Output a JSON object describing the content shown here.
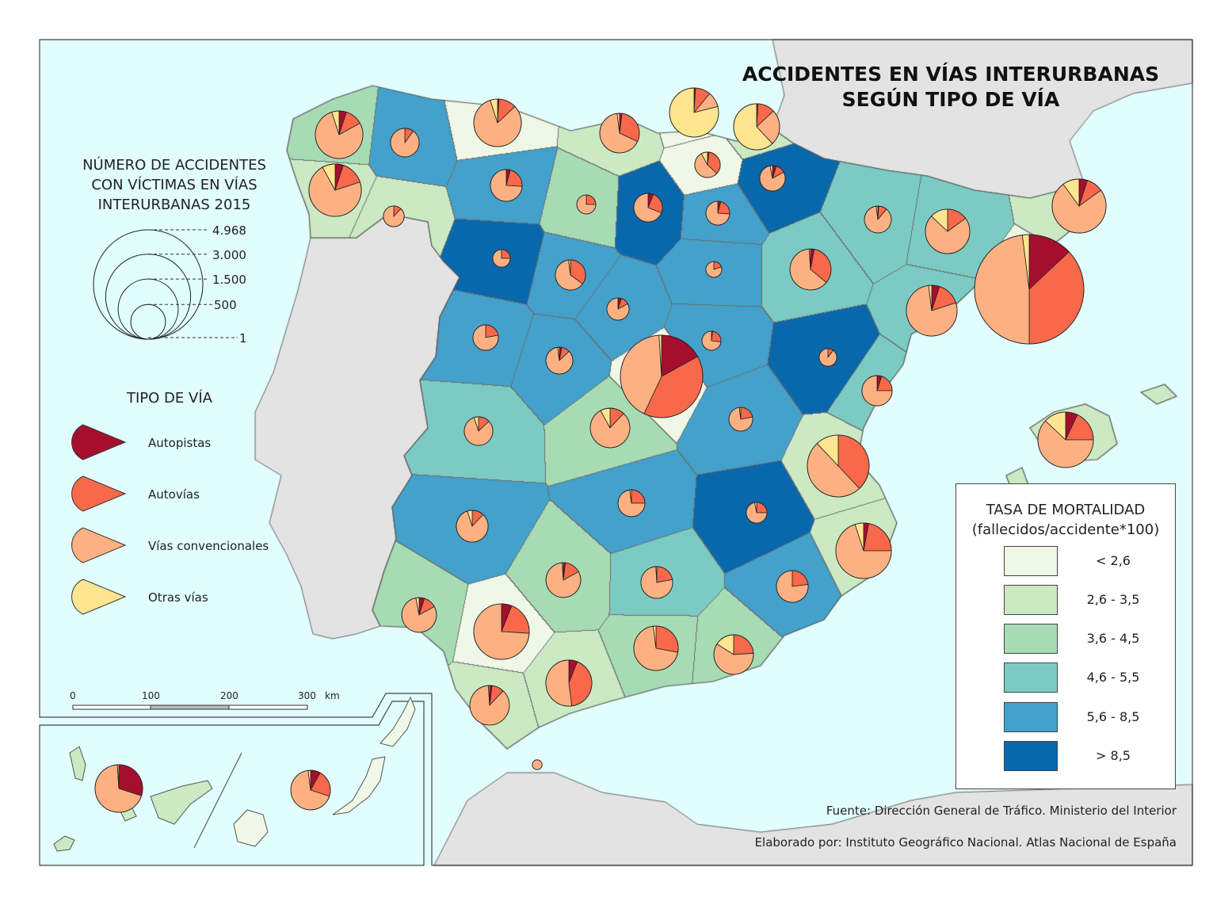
{
  "title": {
    "line1": "ACCIDENTES EN VÍAS INTERURBANAS",
    "line2": "SEGÚN TIPO DE VÍA"
  },
  "size_legend": {
    "title_lines": [
      "NÚMERO DE ACCIDENTES",
      "CON VÍCTIMAS EN VÍAS",
      "INTERURBANAS 2015"
    ],
    "values": [
      {
        "label": "4.968",
        "value": 4968
      },
      {
        "label": "3.000",
        "value": 3000
      },
      {
        "label": "1.500",
        "value": 1500
      },
      {
        "label": "500",
        "value": 500
      },
      {
        "label": "1",
        "value": 1
      }
    ]
  },
  "tipo_legend": {
    "title": "TIPO DE VÍA",
    "items": [
      {
        "label": "Autopistas",
        "color": "#a50f2d"
      },
      {
        "label": "Autovías",
        "color": "#f7694a"
      },
      {
        "label": "Vías convencionales",
        "color": "#fdb183"
      },
      {
        "label": "Otras vías",
        "color": "#fee58f"
      }
    ]
  },
  "mortality_legend": {
    "title": "TASA DE MORTALIDAD",
    "subtitle": "(fallecidos/accidente*100)",
    "classes": [
      {
        "label": "< 2,6",
        "color": "#eff8e6"
      },
      {
        "label": "2,6 - 3,5",
        "color": "#cbeac4"
      },
      {
        "label": "3,6 - 4,5",
        "color": "#a7dbb4"
      },
      {
        "label": "4,6 - 5,5",
        "color": "#7bcbc4"
      },
      {
        "label": "5,6 - 8,5",
        "color": "#43a1cb"
      },
      {
        "label": "> 8,5",
        "color": "#0868ab"
      }
    ]
  },
  "scale_bar": {
    "ticks": [
      "0",
      "100",
      "200",
      "300"
    ],
    "unit": "km"
  },
  "sources": {
    "fuente": "Fuente: Dirección General de Tráfico. Ministerio del Interior",
    "elaborado": "Elaborado por: Instituto Geográfico Nacional. Atlas Nacional de España"
  },
  "colors": {
    "sea": "#e1fdfe",
    "foreign_land": "#e3e3e3",
    "border": "#555555"
  },
  "provinces": [
    {
      "accidents": 2820,
      "shares": [
        0.17,
        0.4,
        0.42,
        0.01
      ],
      "rate_class": 0
    },
    {
      "accidents": 4968,
      "shares": [
        0.13,
        0.37,
        0.48,
        0.02
      ],
      "rate_class": 0
    },
    {
      "accidents": 1590,
      "shares": [
        0,
        0.38,
        0.5,
        0.12
      ],
      "rate_class": 1
    },
    {
      "accidents": 1280,
      "shares": [
        0.06,
        0.2,
        0.74,
        0
      ],
      "rate_class": 0
    },
    {
      "accidents": 880,
      "shares": [
        0.06,
        0.42,
        0.52,
        0
      ],
      "rate_class": 1
    },
    {
      "accidents": 1280,
      "shares": [
        0.03,
        0.22,
        0.7,
        0.05
      ],
      "rate_class": 1
    },
    {
      "accidents": 940,
      "shares": [
        0.01,
        0.12,
        0.82,
        0.05
      ],
      "rate_class": 0
    },
    {
      "accidents": 940,
      "shares": [
        0.05,
        0.12,
        0.78,
        0.05
      ],
      "rate_class": 2
    },
    {
      "accidents": 1140,
      "shares": [
        0.05,
        0.15,
        0.72,
        0.08
      ],
      "rate_class": 1
    },
    {
      "accidents": 1000,
      "shares": [
        0.01,
        0.1,
        0.1,
        0.79
      ],
      "rate_class": 0
    },
    {
      "accidents": 880,
      "shares": [
        0.01,
        0.12,
        0.25,
        0.62
      ],
      "rate_class": 1
    },
    {
      "accidents": 1210,
      "shares": [
        0.05,
        0.1,
        0.75,
        0.1
      ],
      "rate_class": 1
    },
    {
      "accidents": 1070,
      "shares": [
        0.05,
        0.15,
        0.78,
        0.02
      ],
      "rate_class": 3
    },
    {
      "accidents": 820,
      "shares": [
        0,
        0.15,
        0.72,
        0.13
      ],
      "rate_class": 3
    },
    {
      "accidents": 1280,
      "shares": [
        0.07,
        0.18,
        0.62,
        0.13
      ],
      "rate_class": 1
    },
    {
      "accidents": 650,
      "shares": [
        0.02,
        0.3,
        0.66,
        0.02
      ],
      "rate_class": 1
    },
    {
      "accidents": 820,
      "shares": [
        0,
        0.28,
        0.7,
        0.02
      ],
      "rate_class": 2
    },
    {
      "accidents": 500,
      "shares": [
        0.02,
        0.15,
        0.82,
        0.01
      ],
      "rate_class": 2
    },
    {
      "accidents": 650,
      "shares": [
        0.02,
        0.1,
        0.87,
        0.01
      ],
      "rate_class": 1
    },
    {
      "accidents": 500,
      "shares": [
        0.05,
        0.12,
        0.8,
        0.03
      ],
      "rate_class": 2
    },
    {
      "accidents": 650,
      "shares": [
        0,
        0.24,
        0.6,
        0.16
      ],
      "rate_class": 2
    },
    {
      "accidents": 420,
      "shares": [
        0,
        0.23,
        0.77,
        0
      ],
      "rate_class": 4
    },
    {
      "accidents": 420,
      "shares": [
        0,
        0.22,
        0.77,
        0.01
      ],
      "rate_class": 3
    },
    {
      "accidents": 650,
      "shares": [
        0,
        0.12,
        0.8,
        0.08
      ],
      "rate_class": 2
    },
    {
      "accidents": 380,
      "shares": [
        0.05,
        0.2,
        0.75,
        0
      ],
      "rate_class": 3
    },
    {
      "accidents": 270,
      "shares": [
        0.05,
        0.12,
        0.8,
        0.03
      ],
      "rate_class": 5
    },
    {
      "accidents": 270,
      "shares": [
        0.02,
        0.35,
        0.55,
        0.08
      ],
      "rate_class": 0
    },
    {
      "accidents": 700,
      "shares": [
        0.03,
        0.33,
        0.63,
        0.01
      ],
      "rate_class": 3
    },
    {
      "accidents": 300,
      "shares": [
        0.01,
        0.1,
        0.87,
        0.02
      ],
      "rate_class": 3
    },
    {
      "accidents": 130,
      "shares": [
        0,
        0.1,
        0.9,
        0
      ],
      "rate_class": 5
    },
    {
      "accidents": 235,
      "shares": [
        0,
        0.22,
        0.76,
        0.02
      ],
      "rate_class": 4
    },
    {
      "accidents": 180,
      "shares": [
        0,
        0.25,
        0.72,
        0.03
      ],
      "rate_class": 5
    },
    {
      "accidents": 300,
      "shares": [
        0,
        0.25,
        0.73,
        0.02
      ],
      "rate_class": 4
    },
    {
      "accidents": 420,
      "shares": [
        0,
        0.12,
        0.83,
        0.05
      ],
      "rate_class": 4
    },
    {
      "accidents": 340,
      "shares": [
        0,
        0.13,
        0.82,
        0.05
      ],
      "rate_class": 3
    },
    {
      "accidents": 270,
      "shares": [
        0,
        0.22,
        0.78,
        0
      ],
      "rate_class": 4
    },
    {
      "accidents": 300,
      "shares": [
        0.03,
        0.1,
        0.85,
        0.02
      ],
      "rate_class": 4
    },
    {
      "accidents": 205,
      "shares": [
        0.05,
        0.12,
        0.83,
        0
      ],
      "rate_class": 4
    },
    {
      "accidents": 380,
      "shares": [
        0,
        0.35,
        0.63,
        0.02
      ],
      "rate_class": 4
    },
    {
      "accidents": 340,
      "shares": [
        0.06,
        0.25,
        0.69,
        0
      ],
      "rate_class": 5
    },
    {
      "accidents": 150,
      "shares": [
        0,
        0.25,
        0.75,
        0
      ],
      "rate_class": 2
    },
    {
      "accidents": 420,
      "shares": [
        0.04,
        0.22,
        0.74,
        0
      ],
      "rate_class": 4
    },
    {
      "accidents": 130,
      "shares": [
        0,
        0.25,
        0.75,
        0
      ],
      "rate_class": 5
    },
    {
      "accidents": 105,
      "shares": [
        0,
        0.2,
        0.8,
        0
      ],
      "rate_class": 4
    },
    {
      "accidents": 235,
      "shares": [
        0.04,
        0.22,
        0.74,
        0
      ],
      "rate_class": 4
    },
    {
      "accidents": 150,
      "shares": [
        0.02,
        0.25,
        0.73,
        0
      ],
      "rate_class": 4
    },
    {
      "accidents": 340,
      "shares": [
        0,
        0.1,
        0.9,
        0
      ],
      "rate_class": 4
    },
    {
      "accidents": 180,
      "shares": [
        0,
        0.12,
        0.88,
        0
      ],
      "rate_class": 1
    },
    {
      "accidents": 940,
      "shares": [
        0.3,
        0,
        0.69,
        0.01
      ],
      "rate_class": 1
    },
    {
      "accidents": 650,
      "shares": [
        0.08,
        0.22,
        0.68,
        0.02
      ],
      "rate_class": 0
    },
    {
      "accidents": 40,
      "shares": [
        0,
        0,
        1,
        0
      ],
      "rate_class": 1
    }
  ]
}
